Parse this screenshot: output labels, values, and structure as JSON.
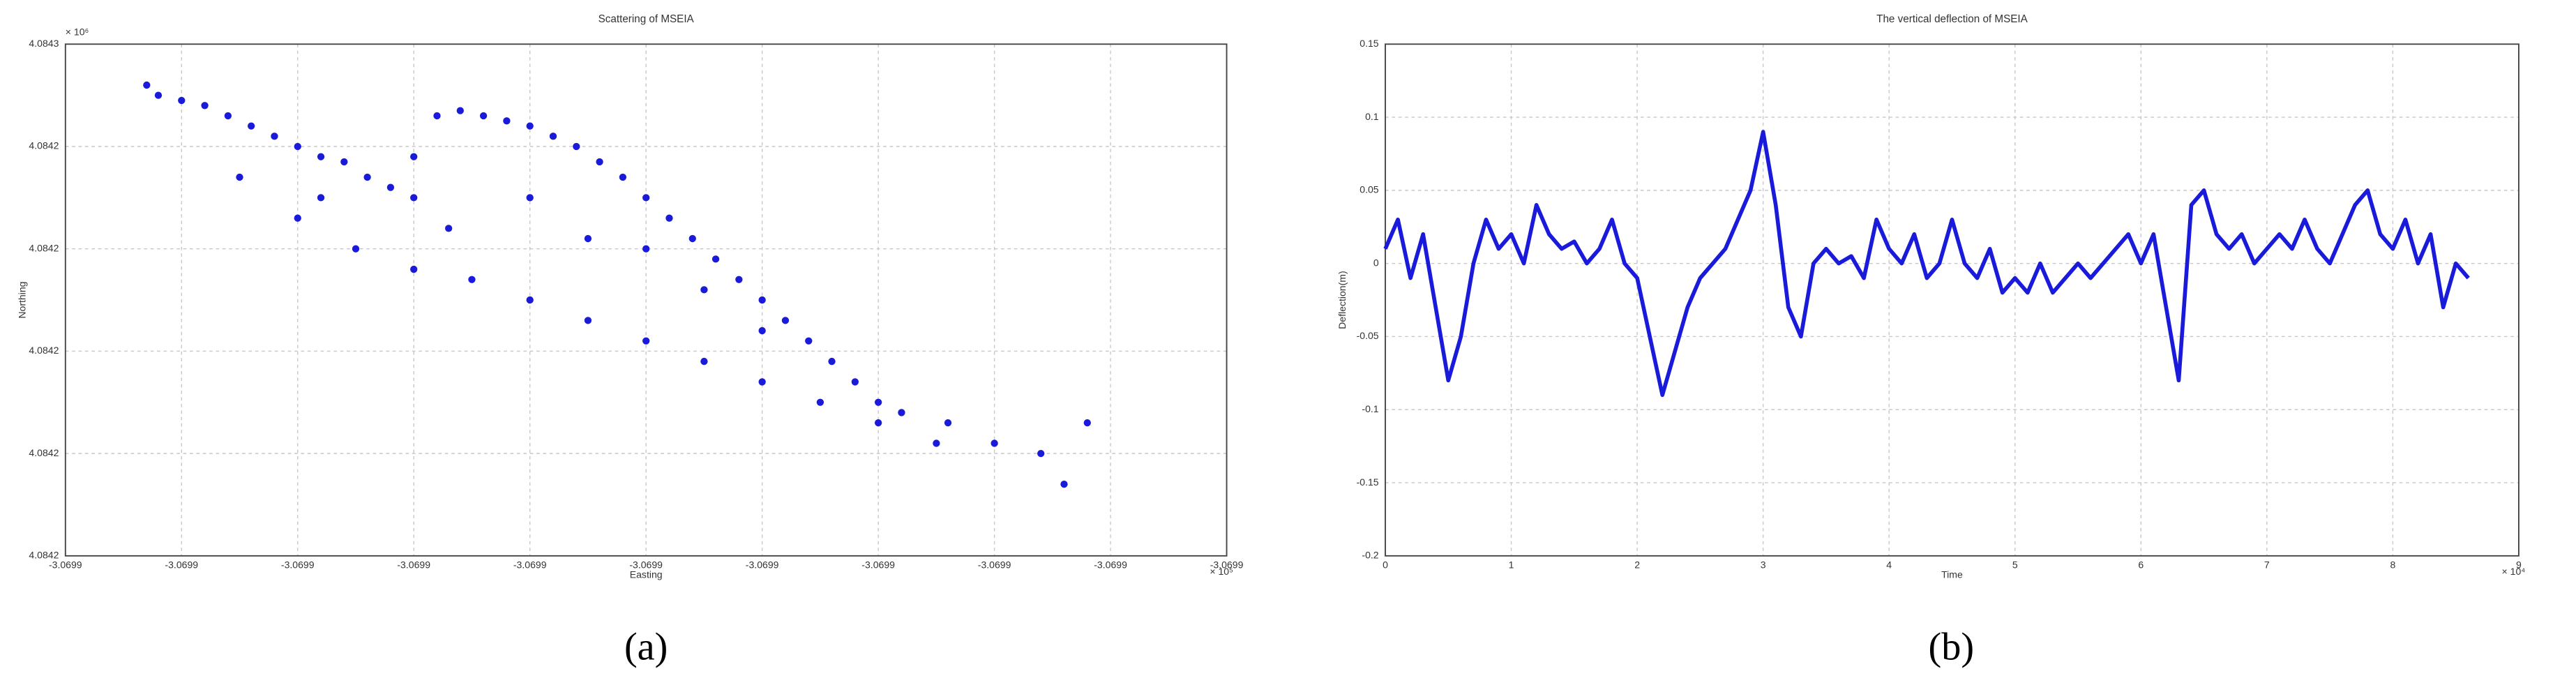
{
  "chart_data": [
    {
      "type": "scatter",
      "title": "Scattering of MSEIA",
      "x_label": "Easting",
      "y_label": "Northing",
      "x_multiplier": "× 10⁵",
      "y_multiplier": "× 10⁶",
      "color": "#1a1adb",
      "grid": true,
      "xlim": [
        -3.06995,
        -3.06985
      ],
      "xticks": [
        {
          "value": -3.06995,
          "label": "-3.0699"
        },
        {
          "value": -3.06994,
          "label": "-3.0699"
        },
        {
          "value": -3.06993,
          "label": "-3.0699"
        },
        {
          "value": -3.06992,
          "label": "-3.0699"
        },
        {
          "value": -3.06991,
          "label": "-3.0699"
        },
        {
          "value": -3.0699,
          "label": "-3.0699"
        },
        {
          "value": -3.06989,
          "label": "-3.0699"
        },
        {
          "value": -3.06988,
          "label": "-3.0699"
        },
        {
          "value": -3.06987,
          "label": "-3.0699"
        },
        {
          "value": -3.06986,
          "label": "-3.0699"
        },
        {
          "value": -3.06985,
          "label": "-3.0699"
        }
      ],
      "ylim": [
        4.08416,
        4.08426
      ],
      "yticks": [
        {
          "value": 4.08416,
          "label": "4.0842"
        },
        {
          "value": 4.08418,
          "label": "4.0842"
        },
        {
          "value": 4.0842,
          "label": "4.0842"
        },
        {
          "value": 4.08422,
          "label": "4.0842"
        },
        {
          "value": 4.08424,
          "label": "4.0842"
        },
        {
          "value": 4.08426,
          "label": "4.0843"
        }
      ],
      "x": [
        -3.069943,
        -3.069942,
        -3.06994,
        -3.069938,
        -3.069936,
        -3.069934,
        -3.069932,
        -3.06993,
        -3.069928,
        -3.069926,
        -3.069924,
        -3.069922,
        -3.06992,
        -3.069918,
        -3.069916,
        -3.069914,
        -3.069912,
        -3.06991,
        -3.069908,
        -3.069906,
        -3.069904,
        -3.069902,
        -3.0699,
        -3.069898,
        -3.069896,
        -3.069894,
        -3.069892,
        -3.06989,
        -3.069888,
        -3.069886,
        -3.069884,
        -3.069882,
        -3.06988,
        -3.069878,
        -3.069874,
        -3.06987,
        -3.069866,
        -3.069864,
        -3.069862,
        -3.06993,
        -3.069925,
        -3.06992,
        -3.069915,
        -3.06991,
        -3.069905,
        -3.0699,
        -3.069895,
        -3.06989,
        -3.069885,
        -3.06988,
        -3.069875,
        -3.06992,
        -3.06991,
        -3.0699,
        -3.06989,
        -3.069917,
        -3.069905,
        -3.069895,
        -3.069935,
        -3.069928
      ],
      "y": [
        4.084252,
        4.08425,
        4.084249,
        4.084248,
        4.084246,
        4.084244,
        4.084242,
        4.08424,
        4.084238,
        4.084237,
        4.084234,
        4.084232,
        4.08423,
        4.084246,
        4.084247,
        4.084246,
        4.084245,
        4.084244,
        4.084242,
        4.08424,
        4.084237,
        4.084234,
        4.08423,
        4.084226,
        4.084222,
        4.084218,
        4.084214,
        4.08421,
        4.084206,
        4.084202,
        4.084198,
        4.084194,
        4.08419,
        4.084188,
        4.084186,
        4.084182,
        4.08418,
        4.084174,
        4.084186,
        4.084226,
        4.08422,
        4.084216,
        4.084214,
        4.08421,
        4.084206,
        4.084202,
        4.084198,
        4.084194,
        4.08419,
        4.084186,
        4.084182,
        4.084238,
        4.08423,
        4.08422,
        4.084204,
        4.084224,
        4.084222,
        4.084212,
        4.084234,
        4.08423
      ]
    },
    {
      "type": "line",
      "title": "The vertical deflection of MSEIA",
      "x_label": "Time",
      "y_label": "Deflection(m)",
      "x_multiplier": "× 10⁴",
      "color": "#1a1adb",
      "grid": true,
      "xlim": [
        0,
        9
      ],
      "xticks": [
        0,
        1,
        2,
        3,
        4,
        5,
        6,
        7,
        8,
        9
      ],
      "ylim": [
        -0.2,
        0.15
      ],
      "yticks": [
        -0.2,
        -0.15,
        -0.1,
        -0.05,
        0,
        0.05,
        0.1,
        0.15
      ],
      "x": [
        0,
        0.1,
        0.2,
        0.3,
        0.4,
        0.5,
        0.6,
        0.7,
        0.8,
        0.9,
        1,
        1.1,
        1.2,
        1.3,
        1.4,
        1.5,
        1.6,
        1.7,
        1.8,
        1.9,
        2,
        2.1,
        2.2,
        2.3,
        2.4,
        2.5,
        2.6,
        2.7,
        2.8,
        2.9,
        3,
        3.1,
        3.2,
        3.3,
        3.4,
        3.5,
        3.6,
        3.7,
        3.8,
        3.9,
        4,
        4.1,
        4.2,
        4.3,
        4.4,
        4.5,
        4.6,
        4.7,
        4.8,
        4.9,
        5,
        5.1,
        5.2,
        5.3,
        5.4,
        5.5,
        5.6,
        5.7,
        5.8,
        5.9,
        6,
        6.1,
        6.2,
        6.3,
        6.4,
        6.5,
        6.6,
        6.7,
        6.8,
        6.9,
        7,
        7.1,
        7.2,
        7.3,
        7.4,
        7.5,
        7.6,
        7.7,
        7.8,
        7.9,
        8,
        8.1,
        8.2,
        8.3,
        8.4,
        8.5,
        8.6
      ],
      "values": [
        0.01,
        0.03,
        -0.01,
        0.02,
        -0.03,
        -0.08,
        -0.05,
        0,
        0.03,
        0.01,
        0.02,
        0,
        0.04,
        0.02,
        0.01,
        0.015,
        0,
        0.01,
        0.03,
        0,
        -0.01,
        -0.05,
        -0.09,
        -0.06,
        -0.03,
        -0.01,
        0,
        0.01,
        0.03,
        0.05,
        0.09,
        0.04,
        -0.03,
        -0.05,
        0,
        0.01,
        0,
        0.005,
        -0.01,
        0.03,
        0.01,
        0,
        0.02,
        -0.01,
        0,
        0.03,
        0,
        -0.01,
        0.01,
        -0.02,
        -0.01,
        -0.02,
        0,
        -0.02,
        -0.01,
        0,
        -0.01,
        0,
        0.01,
        0.02,
        0,
        0.02,
        -0.03,
        -0.08,
        0.04,
        0.05,
        0.02,
        0.01,
        0.02,
        0,
        0.01,
        0.02,
        0.01,
        0.03,
        0.01,
        0,
        0.02,
        0.04,
        0.05,
        0.02,
        0.01,
        0.03,
        0,
        0.02,
        -0.03,
        0,
        -0.01
      ]
    }
  ],
  "panel_labels": [
    "(a)",
    "(b)"
  ]
}
